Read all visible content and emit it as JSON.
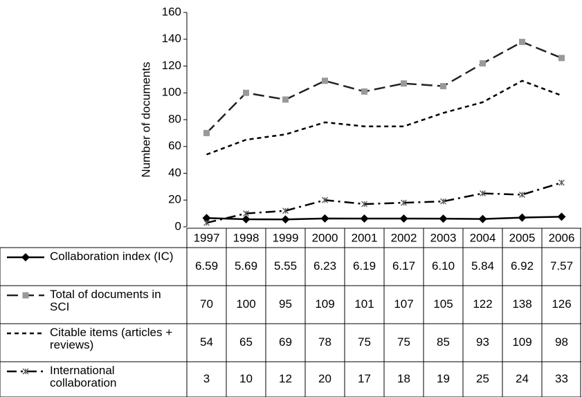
{
  "chart_data": {
    "type": "line",
    "y_label": "Number of documents",
    "categories": [
      "1997",
      "1998",
      "1999",
      "2000",
      "2001",
      "2002",
      "2003",
      "2004",
      "2005",
      "2006"
    ],
    "ylim": [
      0,
      160
    ],
    "yticks": [
      0,
      20,
      40,
      60,
      80,
      100,
      120,
      140,
      160
    ],
    "series": [
      {
        "name": "Collaboration index (IC)",
        "color": "#000000",
        "marker_color": "#000000",
        "marker": "diamond",
        "dash": "none",
        "values": [
          6.59,
          5.69,
          5.55,
          6.23,
          6.19,
          6.17,
          6.1,
          5.84,
          6.92,
          7.57
        ],
        "value_labels": [
          "6.59",
          "5.69",
          "5.55",
          "6.23",
          "6.19",
          "6.17",
          "6.10",
          "5.84",
          "6.92",
          "7.57"
        ]
      },
      {
        "name": "Total of documents in SCI",
        "color": "#222222",
        "marker_color": "#999999",
        "marker": "square",
        "dash": "16 7",
        "values": [
          70,
          100,
          95,
          109,
          101,
          107,
          105,
          122,
          138,
          126
        ]
      },
      {
        "name": "Citable items (articles + reviews)",
        "color": "#000000",
        "marker_color": "#000000",
        "marker": "none",
        "dash": "6 5",
        "values": [
          54,
          65,
          69,
          78,
          75,
          75,
          85,
          93,
          109,
          98
        ]
      },
      {
        "name": "International collaboration",
        "color": "#000000",
        "marker_color": "#555555",
        "marker": "x",
        "dash": "14 6 3 6",
        "values": [
          3,
          10,
          12,
          20,
          17,
          18,
          19,
          25,
          24,
          33
        ]
      }
    ]
  }
}
